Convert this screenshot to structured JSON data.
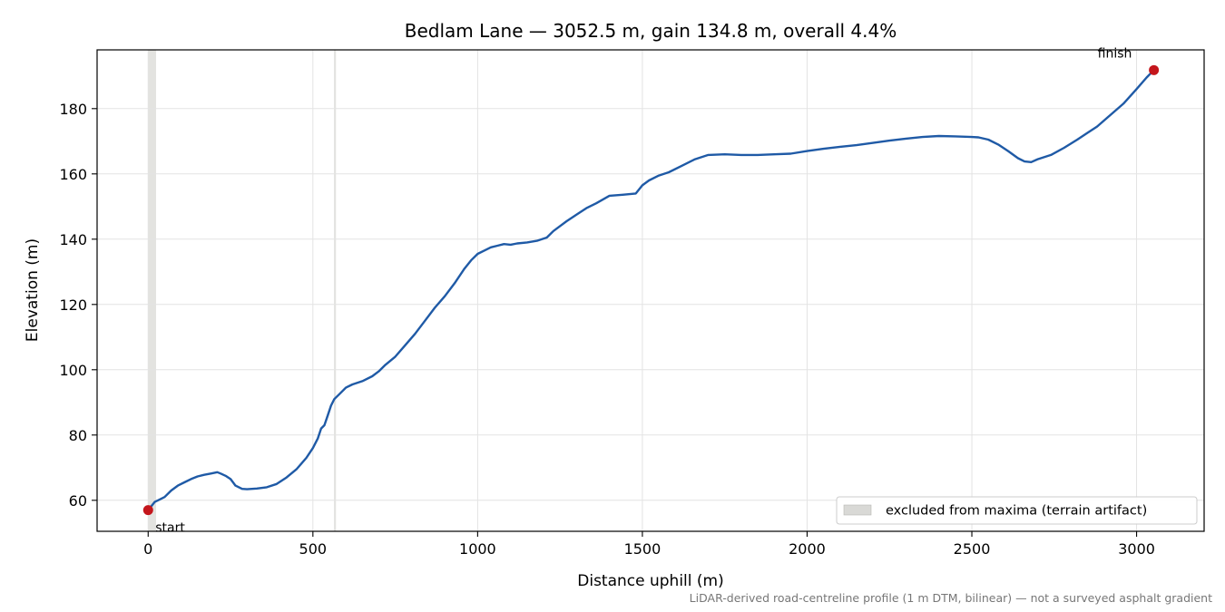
{
  "chart_data": {
    "type": "line",
    "title": "Bedlam Lane — 3052.5 m, gain 134.8 m, overall 4.4%",
    "xlabel": "Distance uphill (m)",
    "ylabel": "Elevation (m)",
    "xlim": [
      -155,
      3205
    ],
    "ylim": [
      50.5,
      198
    ],
    "x_ticks": [
      0,
      500,
      1000,
      1500,
      2000,
      2500,
      3000
    ],
    "y_ticks": [
      60,
      80,
      100,
      120,
      140,
      160,
      180
    ],
    "grid": true,
    "legend_position": "lower-right",
    "line_color": "#1f5aa6",
    "marker_color": "#c4161c",
    "excluded_color": "#d9d9d6",
    "excluded_regions": [
      [
        0,
        24
      ],
      [
        564,
        570
      ]
    ],
    "legend_entries": [
      {
        "label": "excluded from maxima (terrain artifact)"
      }
    ],
    "series": [
      {
        "x": [
          0,
          12,
          20,
          30,
          50,
          70,
          90,
          110,
          130,
          150,
          170,
          190,
          210,
          220,
          235,
          250,
          265,
          285,
          300,
          330,
          360,
          390,
          420,
          450,
          480,
          500,
          515,
          525,
          535,
          545,
          555,
          565,
          580,
          600,
          620,
          650,
          680,
          700,
          720,
          750,
          780,
          810,
          840,
          870,
          900,
          930,
          960,
          980,
          1000,
          1020,
          1040,
          1060,
          1080,
          1100,
          1120,
          1150,
          1180,
          1210,
          1230,
          1250,
          1270,
          1300,
          1330,
          1360,
          1400,
          1440,
          1480,
          1500,
          1520,
          1550,
          1580,
          1620,
          1660,
          1700,
          1750,
          1800,
          1850,
          1900,
          1950,
          2000,
          2050,
          2100,
          2150,
          2200,
          2250,
          2300,
          2350,
          2400,
          2450,
          2480,
          2500,
          2520,
          2550,
          2580,
          2610,
          2640,
          2660,
          2680,
          2700,
          2740,
          2780,
          2820,
          2850,
          2880,
          2920,
          2960,
          3000,
          3030,
          3052.5
        ],
        "y": [
          57,
          58.5,
          59.5,
          60,
          61,
          63,
          64.5,
          65.5,
          66.5,
          67.3,
          67.8,
          68.2,
          68.6,
          68.2,
          67.5,
          66.5,
          64.5,
          63.5,
          63.4,
          63.6,
          64,
          65,
          67,
          69.5,
          73,
          76,
          79,
          82,
          83,
          86,
          89,
          91,
          92.5,
          94.5,
          95.5,
          96.5,
          98,
          99.5,
          101.5,
          104,
          107.5,
          111,
          115,
          119,
          122.5,
          126.5,
          131,
          133.5,
          135.5,
          136.5,
          137.5,
          138,
          138.5,
          138.3,
          138.7,
          139,
          139.5,
          140.5,
          142.5,
          144,
          145.5,
          147.5,
          149.5,
          151,
          153.3,
          153.6,
          154,
          156.5,
          158,
          159.5,
          160.5,
          162.5,
          164.5,
          165.8,
          166,
          165.8,
          165.8,
          166,
          166.2,
          167,
          167.7,
          168.3,
          168.8,
          169.5,
          170.2,
          170.8,
          171.3,
          171.6,
          171.5,
          171.4,
          171.3,
          171.2,
          170.5,
          169,
          167,
          164.8,
          163.8,
          163.6,
          164.5,
          165.8,
          168,
          170.5,
          172.5,
          174.5,
          178,
          181.5,
          186,
          189.5,
          191.8
        ]
      }
    ],
    "points": [
      {
        "x": 0,
        "y": 57,
        "label": "start"
      },
      {
        "x": 3052.5,
        "y": 191.8,
        "label": "finish"
      }
    ],
    "caption": "LiDAR-derived road-centreline profile (1 m DTM, bilinear) — not a surveyed asphalt gradient"
  }
}
